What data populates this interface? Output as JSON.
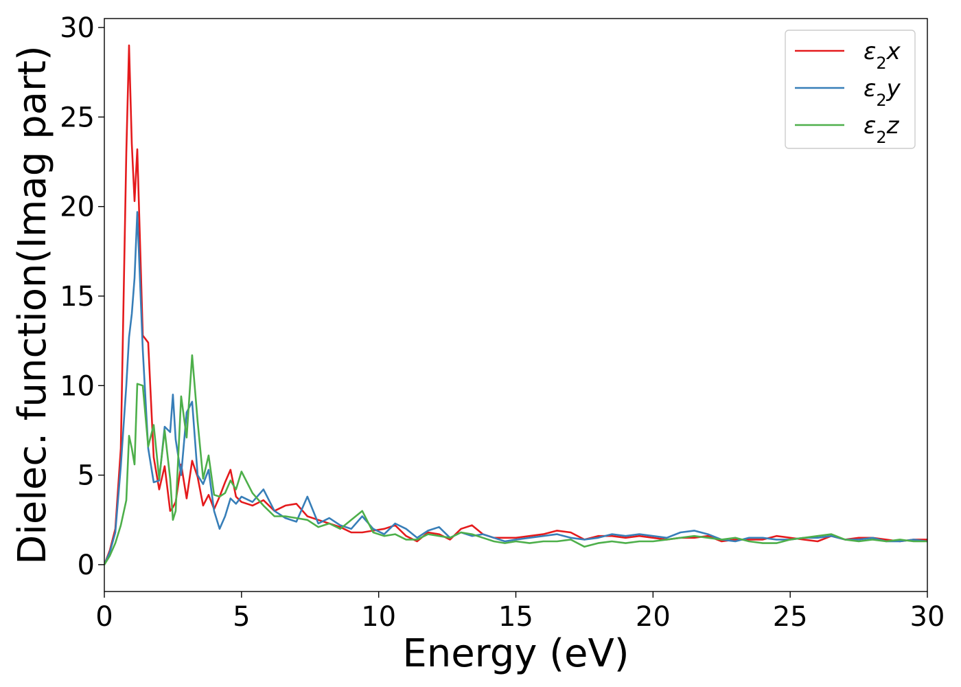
{
  "chart_data": {
    "type": "line",
    "title": "",
    "xlabel": "Energy (eV)",
    "ylabel": "Dielec. function(Imag part)",
    "xlim": [
      0,
      30
    ],
    "ylim": [
      -1.5,
      30.5
    ],
    "xticks": [
      0,
      5,
      10,
      15,
      20,
      25,
      30
    ],
    "yticks": [
      0,
      5,
      10,
      15,
      20,
      25,
      30
    ],
    "grid": false,
    "legend_position": "top-right",
    "legend": [
      {
        "label": "ε₂x",
        "base": "ε",
        "sub": "2",
        "axis": "x"
      },
      {
        "label": "ε₂y",
        "base": "ε",
        "sub": "2",
        "axis": "y"
      },
      {
        "label": "ε₂z",
        "base": "ε",
        "sub": "2",
        "axis": "z"
      }
    ],
    "x": [
      0,
      0.2,
      0.4,
      0.6,
      0.8,
      0.9,
      1.0,
      1.1,
      1.2,
      1.4,
      1.6,
      1.8,
      2.0,
      2.2,
      2.4,
      2.5,
      2.6,
      2.8,
      3.0,
      3.2,
      3.4,
      3.6,
      3.8,
      4.0,
      4.2,
      4.4,
      4.6,
      4.8,
      5.0,
      5.4,
      5.8,
      6.2,
      6.6,
      7.0,
      7.4,
      7.8,
      8.2,
      8.6,
      9.0,
      9.4,
      9.8,
      10.2,
      10.6,
      11.0,
      11.4,
      11.8,
      12.2,
      12.6,
      13.0,
      13.4,
      13.8,
      14.2,
      14.6,
      15.0,
      15.5,
      16.0,
      16.5,
      17.0,
      17.5,
      18.0,
      18.5,
      19.0,
      19.5,
      20.0,
      20.5,
      21.0,
      21.5,
      22.0,
      22.5,
      23.0,
      23.5,
      24.0,
      24.5,
      25.0,
      25.5,
      26.0,
      26.5,
      27.0,
      27.5,
      28.0,
      28.5,
      29.0,
      29.5,
      30.0
    ],
    "series": [
      {
        "name": "ε₂x",
        "color": "#e41a1c",
        "values": [
          0,
          0.8,
          2.0,
          6.5,
          23.0,
          29.0,
          23.5,
          20.3,
          23.2,
          12.8,
          12.4,
          6.0,
          4.2,
          5.5,
          3.0,
          3.2,
          3.5,
          5.6,
          3.7,
          5.8,
          4.9,
          3.3,
          3.9,
          3.1,
          3.8,
          4.6,
          5.3,
          3.8,
          3.5,
          3.3,
          3.6,
          3.0,
          3.3,
          3.4,
          2.7,
          2.5,
          2.3,
          2.1,
          1.8,
          1.8,
          1.9,
          2.0,
          2.2,
          1.6,
          1.3,
          1.8,
          1.7,
          1.4,
          2.0,
          2.2,
          1.7,
          1.5,
          1.5,
          1.5,
          1.6,
          1.7,
          1.9,
          1.8,
          1.4,
          1.6,
          1.6,
          1.5,
          1.6,
          1.5,
          1.4,
          1.5,
          1.5,
          1.6,
          1.3,
          1.4,
          1.4,
          1.4,
          1.6,
          1.5,
          1.4,
          1.3,
          1.6,
          1.4,
          1.5,
          1.5,
          1.4,
          1.3,
          1.4,
          1.4
        ]
      },
      {
        "name": "ε₂y",
        "color": "#377eb8",
        "values": [
          0,
          0.7,
          1.8,
          5.5,
          10.0,
          12.7,
          14.0,
          16.0,
          19.7,
          12.0,
          6.5,
          4.6,
          4.7,
          7.7,
          7.4,
          9.5,
          7.0,
          5.0,
          8.5,
          9.1,
          5.0,
          4.5,
          5.3,
          3.0,
          2.0,
          2.7,
          3.7,
          3.4,
          3.8,
          3.5,
          4.2,
          3.0,
          2.6,
          2.4,
          3.8,
          2.3,
          2.6,
          2.2,
          2.0,
          2.7,
          2.0,
          1.7,
          2.3,
          2.0,
          1.5,
          1.9,
          2.1,
          1.5,
          1.8,
          1.6,
          1.7,
          1.5,
          1.3,
          1.4,
          1.5,
          1.6,
          1.7,
          1.5,
          1.4,
          1.5,
          1.7,
          1.6,
          1.7,
          1.6,
          1.5,
          1.8,
          1.9,
          1.7,
          1.4,
          1.3,
          1.5,
          1.5,
          1.4,
          1.4,
          1.5,
          1.5,
          1.6,
          1.4,
          1.4,
          1.5,
          1.3,
          1.3,
          1.4,
          1.3
        ]
      },
      {
        "name": "ε₂z",
        "color": "#4daf4a",
        "values": [
          0,
          0.5,
          1.2,
          2.2,
          3.6,
          7.2,
          6.5,
          5.6,
          10.1,
          10.0,
          6.6,
          7.8,
          4.8,
          7.5,
          4.8,
          2.5,
          3.0,
          9.4,
          7.1,
          11.7,
          8.0,
          4.8,
          6.1,
          3.9,
          3.8,
          4.0,
          4.7,
          4.2,
          5.2,
          4.0,
          3.3,
          2.7,
          2.7,
          2.6,
          2.5,
          2.1,
          2.3,
          2.0,
          2.5,
          3.0,
          1.8,
          1.6,
          1.7,
          1.4,
          1.4,
          1.7,
          1.6,
          1.5,
          1.8,
          1.7,
          1.5,
          1.3,
          1.2,
          1.3,
          1.2,
          1.3,
          1.3,
          1.4,
          1.0,
          1.2,
          1.3,
          1.2,
          1.3,
          1.3,
          1.4,
          1.5,
          1.6,
          1.5,
          1.4,
          1.5,
          1.3,
          1.2,
          1.2,
          1.4,
          1.5,
          1.6,
          1.7,
          1.4,
          1.3,
          1.4,
          1.3,
          1.4,
          1.3,
          1.3
        ]
      }
    ]
  }
}
